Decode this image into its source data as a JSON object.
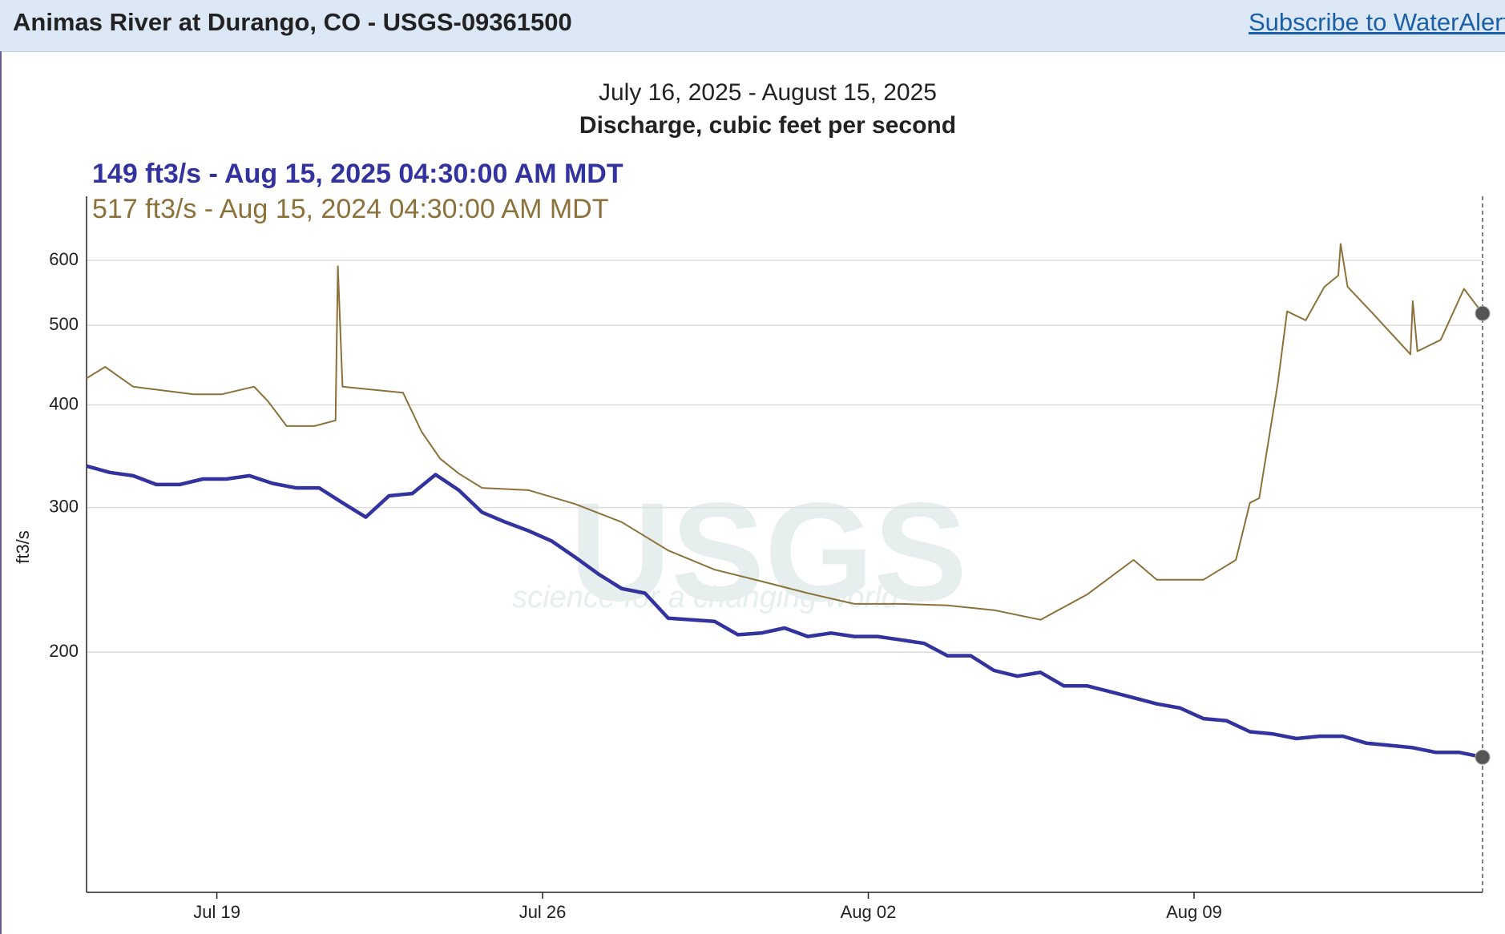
{
  "header": {
    "title": "Animas River at Durango, CO - USGS-09361500",
    "link": "Subscribe to WaterAlert"
  },
  "watermark": {
    "logo": "USGS",
    "tagline": "science for a changing world"
  },
  "chart_data": {
    "type": "line",
    "title": "July 16, 2025 - August 15, 2025",
    "subtitle": "Discharge, cubic feet per second",
    "y_label": "ft3/s",
    "log_y": true,
    "grid": true,
    "xlim": [
      0,
      30
    ],
    "xticks": [
      {
        "value": 2.8,
        "label": "Jul 19"
      },
      {
        "value": 9.8,
        "label": "Jul 26"
      },
      {
        "value": 16.8,
        "label": "Aug 02"
      },
      {
        "value": 23.8,
        "label": "Aug 09"
      }
    ],
    "ylim": [
      102,
      718
    ],
    "yticks": [
      200,
      300,
      400,
      500,
      600
    ],
    "series": [
      {
        "name": "149 ft3/s - Aug 15, 2025 04:30:00 AM MDT",
        "color": "#3333a0",
        "width": 4.5,
        "x": [
          0,
          0.5,
          1,
          1.5,
          2,
          2.5,
          3,
          3.5,
          4,
          4.5,
          5,
          5.5,
          6,
          6.5,
          7,
          7.5,
          8,
          8.5,
          9,
          9.5,
          10,
          10.5,
          11,
          11.5,
          12,
          12.5,
          13,
          13.5,
          14,
          14.5,
          15,
          15.5,
          16,
          16.5,
          17,
          17.5,
          18,
          18.5,
          19,
          19.5,
          20,
          20.5,
          21,
          21.5,
          22,
          22.5,
          23,
          23.5,
          24,
          24.5,
          25,
          25.5,
          26,
          26.5,
          27,
          27.5,
          28,
          28.5,
          29,
          29.5,
          30
        ],
        "values": [
          337,
          331,
          328,
          320,
          320,
          325,
          325,
          328,
          321,
          317,
          317,
          304,
          292,
          310,
          312,
          329,
          315,
          296,
          288,
          281,
          273,
          261,
          249,
          239,
          236,
          220,
          219,
          218,
          210,
          211,
          214,
          209,
          211,
          209,
          209,
          207,
          205,
          198,
          198,
          190,
          187,
          189,
          182,
          182,
          179,
          176,
          173,
          171,
          166,
          165,
          160,
          159,
          157,
          158,
          158,
          155,
          154,
          153,
          151,
          151,
          149
        ]
      },
      {
        "name": "517 ft3/s - Aug 15, 2024 04:30:00 AM MDT",
        "color": "#8c723a",
        "width": 2,
        "x": [
          0,
          0.4,
          1,
          2.3,
          2.9,
          3.6,
          3.9,
          4.3,
          4.9,
          5.35,
          5.4,
          5.5,
          6.8,
          7.2,
          7.6,
          8,
          8.5,
          9.5,
          10.5,
          11.5,
          12.5,
          13.5,
          14.5,
          15.5,
          16.5,
          17.5,
          18.5,
          19.5,
          20.5,
          21.5,
          22.5,
          23,
          24,
          24.7,
          25,
          25.2,
          25.6,
          25.8,
          26.2,
          26.6,
          26.9,
          26.95,
          27.1,
          27.6,
          28.45,
          28.5,
          28.6,
          29.1,
          29.6,
          30
        ],
        "values": [
          431,
          445,
          421,
          412,
          412,
          421,
          404,
          377,
          377,
          383,
          590,
          421,
          414,
          371,
          344,
          330,
          317,
          315,
          303,
          288,
          266,
          252,
          244,
          236,
          229,
          229,
          228,
          225,
          219,
          235,
          259,
          245,
          245,
          259,
          304,
          308,
          425,
          520,
          507,
          557,
          575,
          628,
          557,
          520,
          461,
          535,
          465,
          480,
          554,
          517
        ]
      }
    ]
  }
}
